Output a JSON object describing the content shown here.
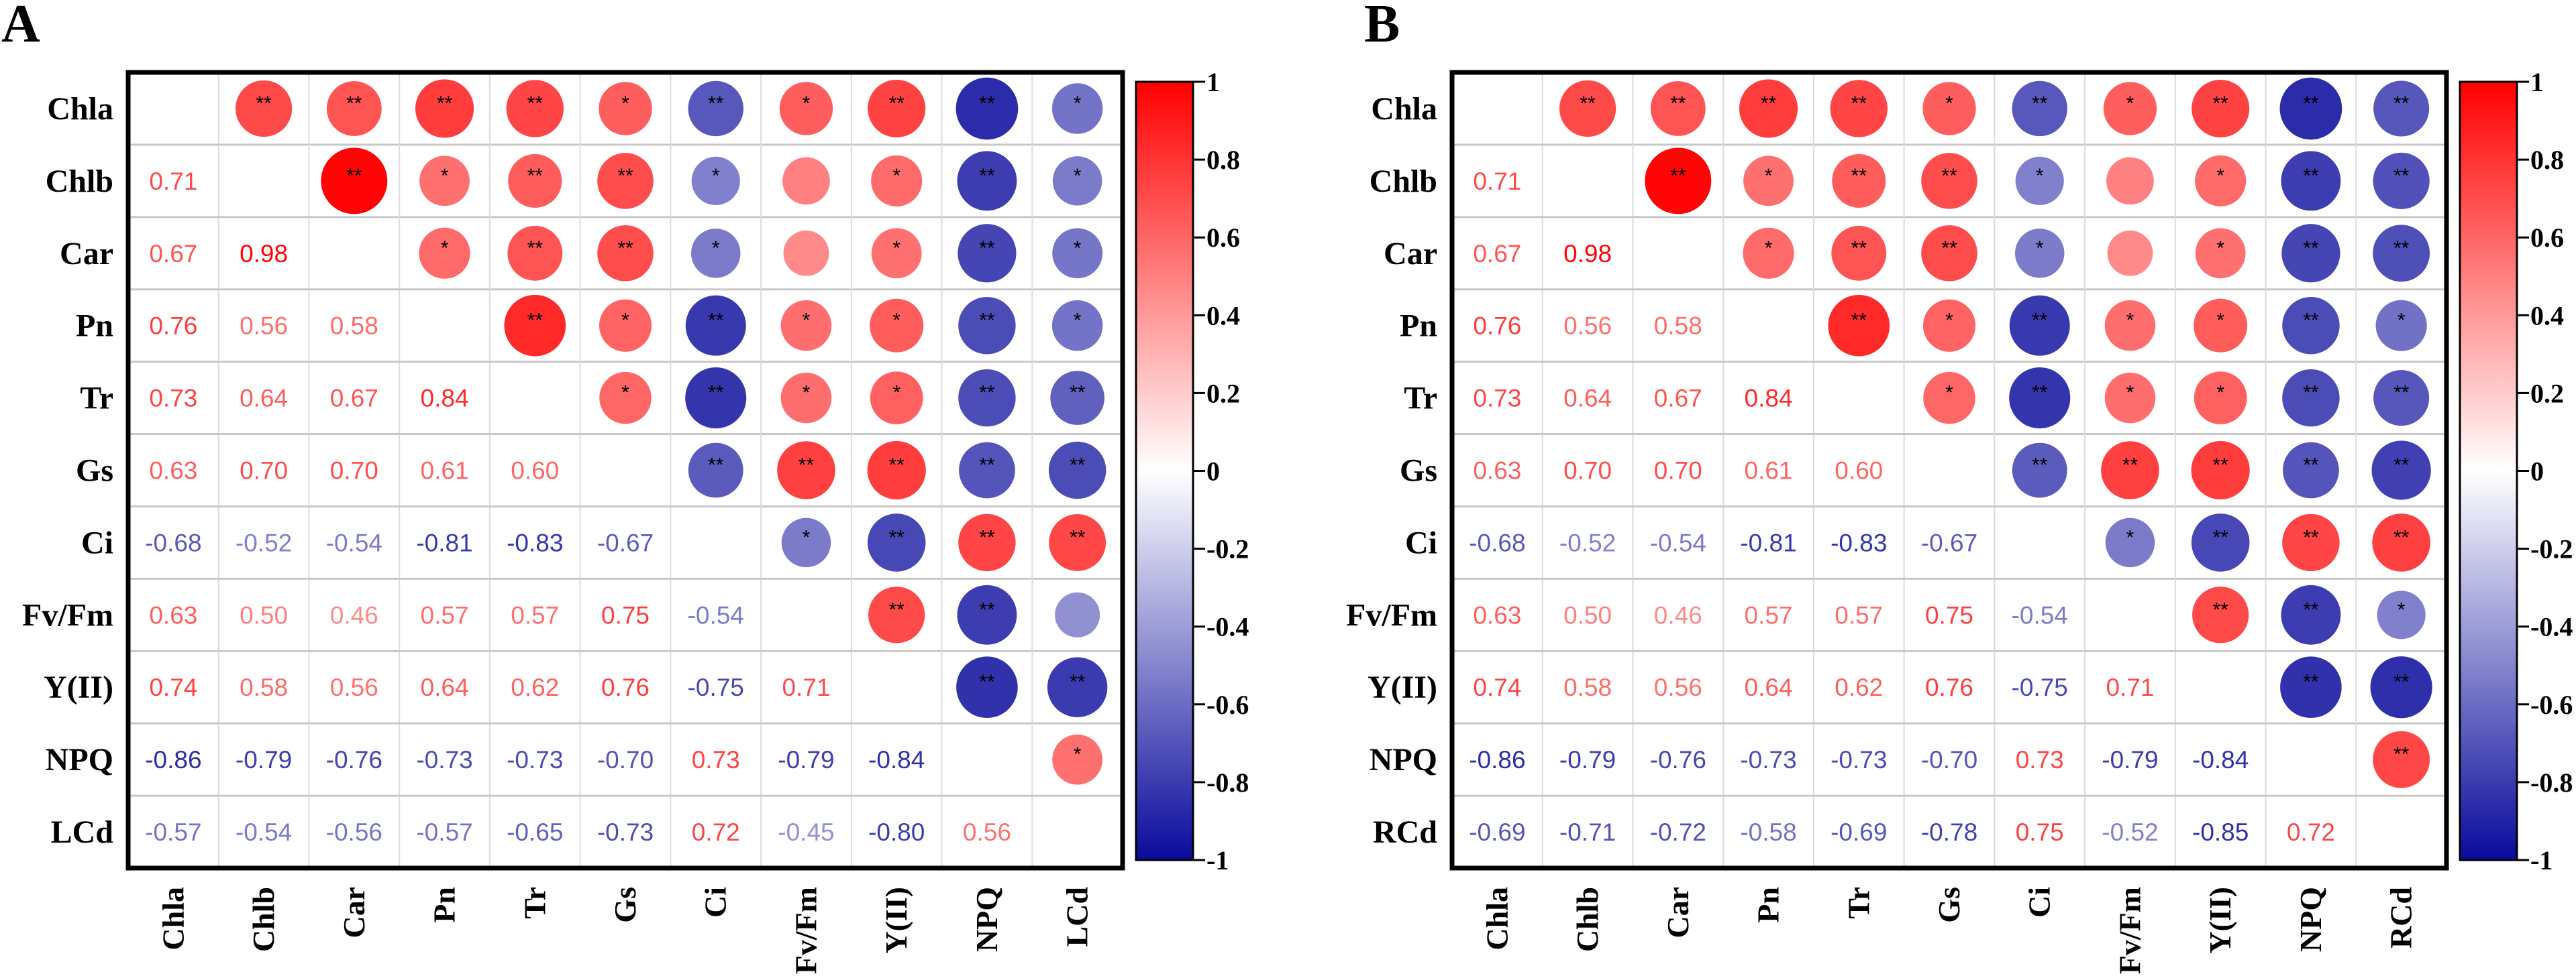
{
  "chart_data": [
    {
      "type": "heatmap",
      "panel_label": "A",
      "variables": [
        "Chla",
        "Chlb",
        "Car",
        "Pn",
        "Tr",
        "Gs",
        "Ci",
        "Fv/Fm",
        "Y(II)",
        "NPQ",
        "LCd"
      ],
      "lower_triangle_values": [
        [],
        [
          "0.71"
        ],
        [
          "0.67",
          "0.98"
        ],
        [
          "0.76",
          "0.56",
          "0.58"
        ],
        [
          "0.73",
          "0.64",
          "0.67",
          "0.84"
        ],
        [
          "0.63",
          "0.70",
          "0.70",
          "0.61",
          "0.60"
        ],
        [
          "-0.68",
          "-0.52",
          "-0.54",
          "-0.81",
          "-0.83",
          "-0.67"
        ],
        [
          "0.63",
          "0.50",
          "0.46",
          "0.57",
          "0.57",
          "0.75",
          "-0.54"
        ],
        [
          "0.74",
          "0.58",
          "0.56",
          "0.64",
          "0.62",
          "0.76",
          "-0.75",
          "0.71"
        ],
        [
          "-0.86",
          "-0.79",
          "-0.76",
          "-0.73",
          "-0.73",
          "-0.70",
          "0.73",
          "-0.79",
          "-0.84"
        ],
        [
          "-0.57",
          "-0.54",
          "-0.56",
          "-0.57",
          "-0.65",
          "-0.73",
          "0.72",
          "-0.45",
          "-0.80",
          "0.56"
        ]
      ],
      "upper_triangle_significance": [
        [
          "**",
          "**",
          "**",
          "**",
          "*",
          "**",
          "*",
          "**",
          "**",
          "*"
        ],
        [
          "**",
          "*",
          "**",
          "**",
          "*",
          "",
          "*",
          "**",
          "*"
        ],
        [
          "*",
          "**",
          "**",
          "*",
          "",
          "*",
          "**",
          "*"
        ],
        [
          "**",
          "*",
          "**",
          "*",
          "*",
          "**",
          "*"
        ],
        [
          "*",
          "**",
          "*",
          "*",
          "**",
          "**"
        ],
        [
          "**",
          "**",
          "**",
          "**",
          "**"
        ],
        [
          "*",
          "**",
          "**",
          "**"
        ],
        [
          "**",
          "**",
          ""
        ],
        [
          "**",
          "**"
        ],
        [
          "*"
        ],
        []
      ],
      "colorbar": {
        "range": [
          -1,
          1
        ],
        "ticks": [
          "1",
          "0.8",
          "0.6",
          "0.4",
          "0.2",
          "0",
          "-0.2",
          "-0.4",
          "-0.6",
          "-0.8",
          "-1"
        ],
        "low_color": "#0a0a9c",
        "mid_color": "#ffffff",
        "high_color": "#ff0000"
      }
    },
    {
      "type": "heatmap",
      "panel_label": "B",
      "variables": [
        "Chla",
        "Chlb",
        "Car",
        "Pn",
        "Tr",
        "Gs",
        "Ci",
        "Fv/Fm",
        "Y(II)",
        "NPQ",
        "RCd"
      ],
      "lower_triangle_values": [
        [],
        [
          "0.71"
        ],
        [
          "0.67",
          "0.98"
        ],
        [
          "0.76",
          "0.56",
          "0.58"
        ],
        [
          "0.73",
          "0.64",
          "0.67",
          "0.84"
        ],
        [
          "0.63",
          "0.70",
          "0.70",
          "0.61",
          "0.60"
        ],
        [
          "-0.68",
          "-0.52",
          "-0.54",
          "-0.81",
          "-0.83",
          "-0.67"
        ],
        [
          "0.63",
          "0.50",
          "0.46",
          "0.57",
          "0.57",
          "0.75",
          "-0.54"
        ],
        [
          "0.74",
          "0.58",
          "0.56",
          "0.64",
          "0.62",
          "0.76",
          "-0.75",
          "0.71"
        ],
        [
          "-0.86",
          "-0.79",
          "-0.76",
          "-0.73",
          "-0.73",
          "-0.70",
          "0.73",
          "-0.79",
          "-0.84"
        ],
        [
          "-0.69",
          "-0.71",
          "-0.72",
          "-0.58",
          "-0.69",
          "-0.78",
          "0.75",
          "-0.52",
          "-0.85",
          "0.72"
        ]
      ],
      "upper_triangle_significance": [
        [
          "**",
          "**",
          "**",
          "**",
          "*",
          "**",
          "*",
          "**",
          "**",
          "**"
        ],
        [
          "**",
          "*",
          "**",
          "**",
          "*",
          "",
          "*",
          "**",
          "**"
        ],
        [
          "*",
          "**",
          "**",
          "*",
          "",
          "*",
          "**",
          "**"
        ],
        [
          "**",
          "*",
          "**",
          "*",
          "*",
          "**",
          "*"
        ],
        [
          "*",
          "**",
          "*",
          "*",
          "**",
          "**"
        ],
        [
          "**",
          "**",
          "**",
          "**",
          "**"
        ],
        [
          "*",
          "**",
          "**",
          "**"
        ],
        [
          "**",
          "**",
          "*"
        ],
        [
          "**",
          "**"
        ],
        [
          "**"
        ],
        []
      ],
      "colorbar": {
        "range": [
          -1,
          1
        ],
        "ticks": [
          "1",
          "0.8",
          "0.6",
          "0.4",
          "0.2",
          "0",
          "-0.2",
          "-0.4",
          "-0.6",
          "-0.8",
          "-1"
        ],
        "low_color": "#0a0a9c",
        "mid_color": "#ffffff",
        "high_color": "#ff0000"
      }
    }
  ]
}
